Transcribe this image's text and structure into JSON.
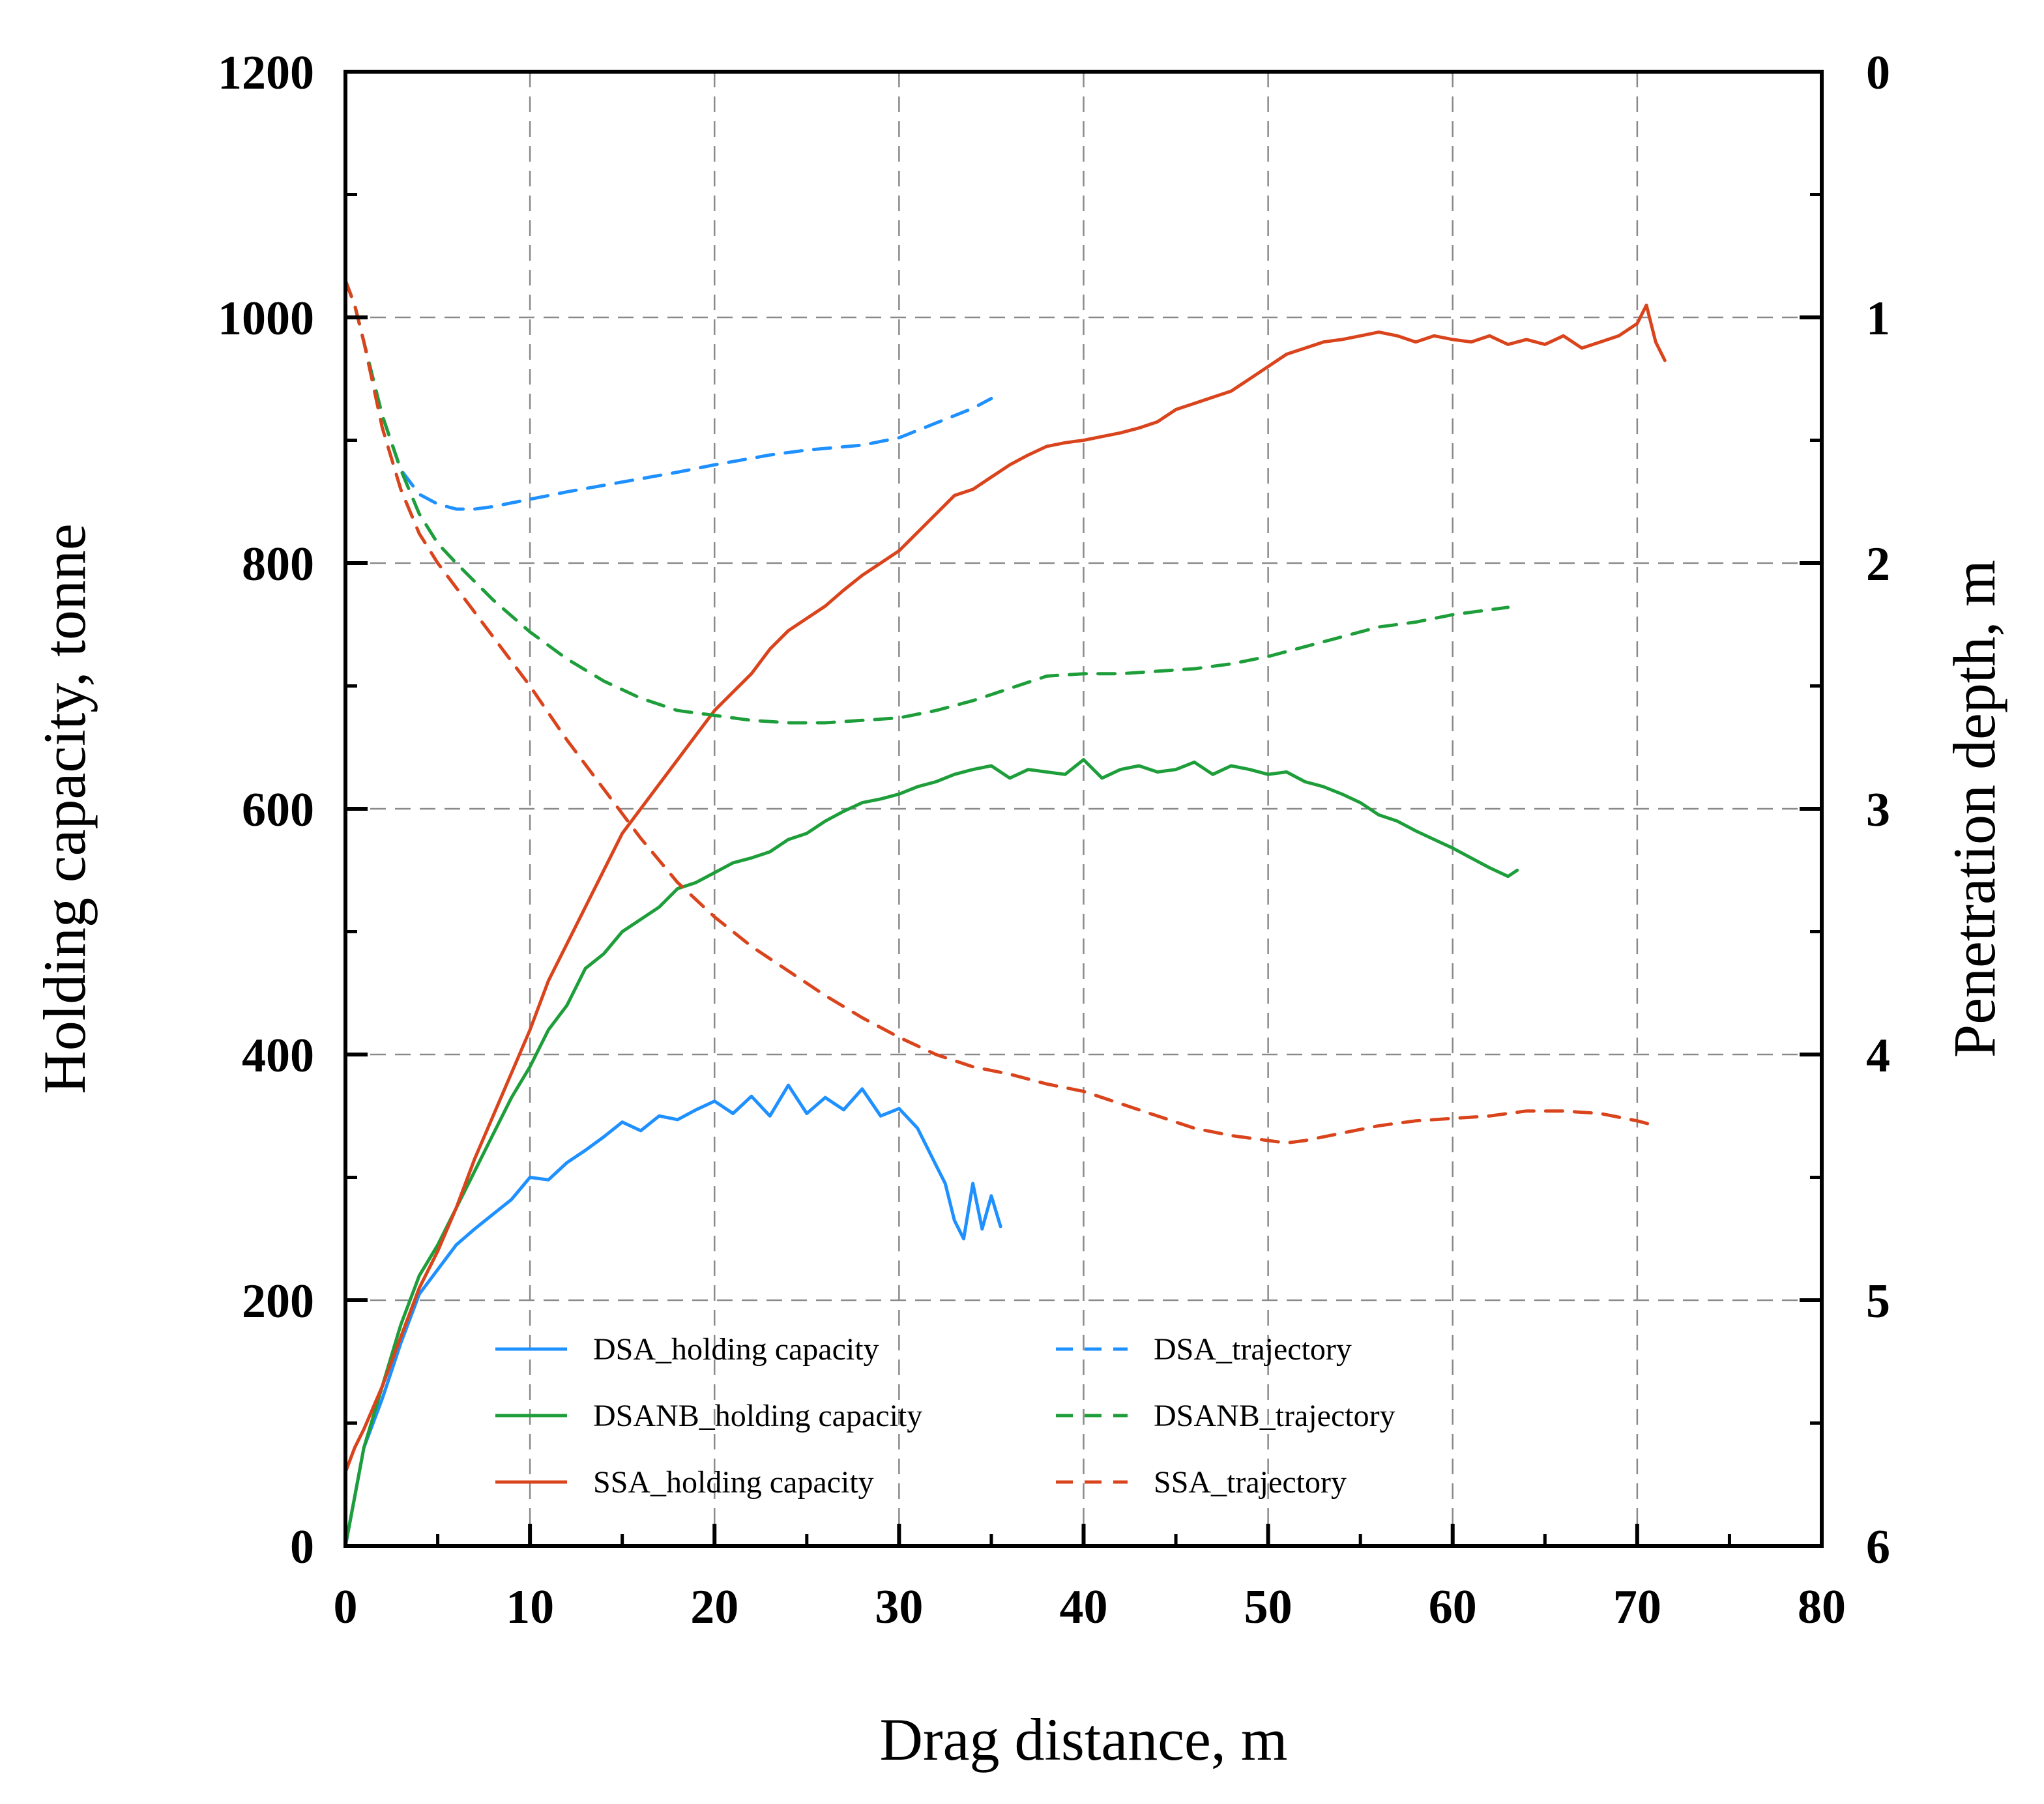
{
  "chart_data": {
    "type": "line",
    "title": "",
    "xlabel": "Drag distance, m",
    "ylabel": "Holding capacity, tonne",
    "y2label": "Penetration depth, m",
    "xlim": [
      0,
      80
    ],
    "ylim": [
      0,
      1200
    ],
    "y2lim": [
      0,
      6
    ],
    "y2_inverted": true,
    "x_ticks": [
      0,
      10,
      20,
      30,
      40,
      50,
      60,
      70,
      80
    ],
    "y_ticks": [
      0,
      200,
      400,
      600,
      800,
      1000,
      1200
    ],
    "y2_ticks": [
      0,
      1,
      2,
      3,
      4,
      5,
      6
    ],
    "grid": true,
    "legend_position": "bottom-center",
    "series": [
      {
        "name": "DSA_holding capacity",
        "axis": "left",
        "style": "solid",
        "color": "#1E90FF",
        "x": [
          0,
          0.5,
          1,
          2,
          3,
          4,
          5,
          6,
          7,
          8,
          9,
          10,
          11,
          12,
          13,
          14,
          15,
          16,
          17,
          18,
          19,
          20,
          21,
          22,
          23,
          24,
          25,
          26,
          27,
          28,
          29,
          30,
          31,
          32,
          32.5,
          33,
          33.5,
          34,
          34.5,
          35,
          35.5
        ],
        "y": [
          0,
          40,
          80,
          120,
          165,
          205,
          225,
          245,
          258,
          270,
          282,
          300,
          298,
          312,
          322,
          333,
          345,
          338,
          350,
          347,
          355,
          362,
          352,
          366,
          350,
          375,
          352,
          365,
          355,
          372,
          350,
          356,
          340,
          310,
          295,
          265,
          250,
          295,
          258,
          285,
          260
        ]
      },
      {
        "name": "DSANB_holding capacity",
        "axis": "left",
        "style": "solid",
        "color": "#1E9E3A",
        "x": [
          0,
          0.5,
          1,
          2,
          3,
          4,
          5,
          6,
          7,
          8,
          9,
          10,
          11,
          12,
          13,
          14,
          15,
          16,
          17,
          18,
          19,
          20,
          21,
          22,
          23,
          24,
          25,
          26,
          27,
          28,
          29,
          30,
          31,
          32,
          33,
          34,
          35,
          36,
          37,
          38,
          39,
          40,
          41,
          42,
          43,
          44,
          45,
          46,
          47,
          48,
          49,
          50,
          51,
          52,
          53,
          54,
          55,
          56,
          57,
          58,
          59,
          60,
          61,
          62,
          63,
          63.5
        ],
        "y": [
          0,
          40,
          80,
          130,
          180,
          220,
          245,
          275,
          305,
          335,
          365,
          390,
          420,
          440,
          470,
          482,
          500,
          510,
          520,
          535,
          540,
          548,
          556,
          560,
          565,
          575,
          580,
          590,
          598,
          605,
          608,
          612,
          618,
          622,
          628,
          632,
          635,
          625,
          632,
          630,
          628,
          640,
          625,
          632,
          635,
          630,
          632,
          638,
          628,
          635,
          632,
          628,
          630,
          622,
          618,
          612,
          605,
          595,
          590,
          582,
          575,
          568,
          560,
          552,
          545,
          550
        ]
      },
      {
        "name": "SSA_holding capacity",
        "axis": "left",
        "style": "solid",
        "color": "#D9441C",
        "x": [
          0,
          0.5,
          1,
          2,
          3,
          4,
          5,
          6,
          7,
          8,
          9,
          10,
          11,
          12,
          13,
          14,
          15,
          16,
          17,
          18,
          19,
          20,
          21,
          22,
          23,
          24,
          25,
          26,
          27,
          28,
          29,
          30,
          31,
          32,
          33,
          34,
          35,
          36,
          37,
          38,
          39,
          40,
          41,
          42,
          43,
          44,
          45,
          46,
          47,
          48,
          49,
          50,
          51,
          52,
          53,
          54,
          55,
          56,
          57,
          58,
          59,
          60,
          61,
          62,
          63,
          64,
          65,
          66,
          67,
          68,
          69,
          70,
          70.5,
          71,
          71.5
        ],
        "y": [
          60,
          80,
          95,
          130,
          170,
          210,
          240,
          275,
          315,
          350,
          385,
          420,
          460,
          490,
          520,
          550,
          580,
          600,
          620,
          640,
          660,
          680,
          695,
          710,
          730,
          745,
          755,
          765,
          778,
          790,
          800,
          810,
          825,
          840,
          855,
          860,
          870,
          880,
          888,
          895,
          898,
          900,
          903,
          906,
          910,
          915,
          925,
          930,
          935,
          940,
          950,
          960,
          970,
          975,
          980,
          982,
          985,
          988,
          985,
          980,
          985,
          982,
          980,
          985,
          978,
          982,
          978,
          985,
          975,
          980,
          985,
          995,
          1010,
          980,
          965
        ]
      },
      {
        "name": "DSA_trajectory",
        "axis": "right",
        "style": "dashed",
        "color": "#1E90FF",
        "x": [
          0,
          0.5,
          1,
          2,
          3,
          4,
          5,
          6,
          7,
          8,
          10,
          12,
          15,
          18,
          20,
          23,
          25,
          28,
          30,
          32,
          34,
          35
        ],
        "y": [
          0.85,
          0.95,
          1.1,
          1.4,
          1.62,
          1.72,
          1.76,
          1.78,
          1.78,
          1.77,
          1.74,
          1.71,
          1.67,
          1.63,
          1.6,
          1.56,
          1.54,
          1.52,
          1.49,
          1.43,
          1.37,
          1.33
        ]
      },
      {
        "name": "DSANB_trajectory",
        "axis": "right",
        "style": "dashed",
        "color": "#1E9E3A",
        "x": [
          0,
          0.5,
          1,
          2,
          3,
          4,
          5,
          6,
          8,
          10,
          12,
          14,
          16,
          18,
          20,
          22,
          24,
          26,
          28,
          30,
          32,
          34,
          36,
          38,
          40,
          42,
          44,
          46,
          48,
          50,
          52,
          54,
          56,
          58,
          60,
          62,
          63
        ],
        "y": [
          0.85,
          0.95,
          1.1,
          1.4,
          1.62,
          1.8,
          1.92,
          2.0,
          2.15,
          2.28,
          2.39,
          2.48,
          2.55,
          2.6,
          2.62,
          2.64,
          2.65,
          2.65,
          2.64,
          2.63,
          2.6,
          2.56,
          2.51,
          2.46,
          2.45,
          2.45,
          2.44,
          2.43,
          2.41,
          2.38,
          2.34,
          2.3,
          2.26,
          2.24,
          2.21,
          2.19,
          2.18
        ]
      },
      {
        "name": "SSA_trajectory",
        "axis": "right",
        "style": "dashed",
        "color": "#D9441C",
        "x": [
          0,
          0.5,
          1,
          2,
          3,
          4,
          5,
          6,
          8,
          10,
          12,
          14,
          16,
          18,
          20,
          22,
          24,
          26,
          28,
          30,
          32,
          34,
          36,
          38,
          40,
          42,
          44,
          46,
          48,
          50,
          51,
          52,
          54,
          56,
          58,
          60,
          62,
          64,
          66,
          68,
          70,
          71
        ],
        "y": [
          0.85,
          0.95,
          1.1,
          1.45,
          1.7,
          1.88,
          2.0,
          2.1,
          2.3,
          2.5,
          2.72,
          2.92,
          3.12,
          3.3,
          3.44,
          3.56,
          3.66,
          3.76,
          3.85,
          3.93,
          4.0,
          4.05,
          4.08,
          4.12,
          4.15,
          4.2,
          4.25,
          4.3,
          4.33,
          4.35,
          4.36,
          4.35,
          4.32,
          4.29,
          4.27,
          4.26,
          4.25,
          4.23,
          4.23,
          4.24,
          4.27,
          4.29
        ]
      }
    ]
  }
}
